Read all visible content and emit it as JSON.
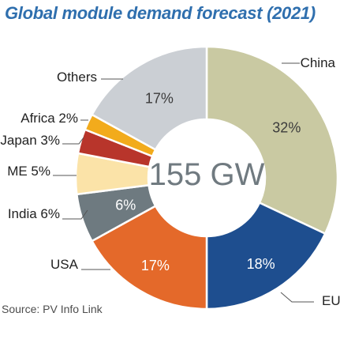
{
  "title": "Global module demand forecast (2021)",
  "source": "Source: PV Info Link",
  "chart_data": {
    "type": "pie",
    "title": "Global module demand forecast (2021)",
    "center_label": "155 GW",
    "unit": "%",
    "slices": [
      {
        "label": "China",
        "value": 32,
        "display": "32%",
        "color": "#c9c9a2"
      },
      {
        "label": "EU",
        "value": 18,
        "display": "18%",
        "color": "#1e4e8f"
      },
      {
        "label": "USA",
        "value": 17,
        "display": "17%",
        "color": "#e4692a"
      },
      {
        "label": "India",
        "value": 6,
        "display": "6%",
        "color": "#6e7a80"
      },
      {
        "label": "ME",
        "value": 5,
        "display": "",
        "color": "#fbe3a8"
      },
      {
        "label": "Japan",
        "value": 3,
        "display": "",
        "color": "#b8352b"
      },
      {
        "label": "Africa",
        "value": 2,
        "display": "",
        "color": "#f2ab1c"
      },
      {
        "label": "Others",
        "value": 17,
        "display": "17%",
        "color": "#cbcfd4"
      }
    ],
    "outer_labels": {
      "China": "China",
      "EU": "EU",
      "USA": "USA",
      "India": "India 6%",
      "ME": "ME 5%",
      "Japan": "Japan 3%",
      "Africa": "Africa 2%",
      "Others": "Others"
    }
  }
}
